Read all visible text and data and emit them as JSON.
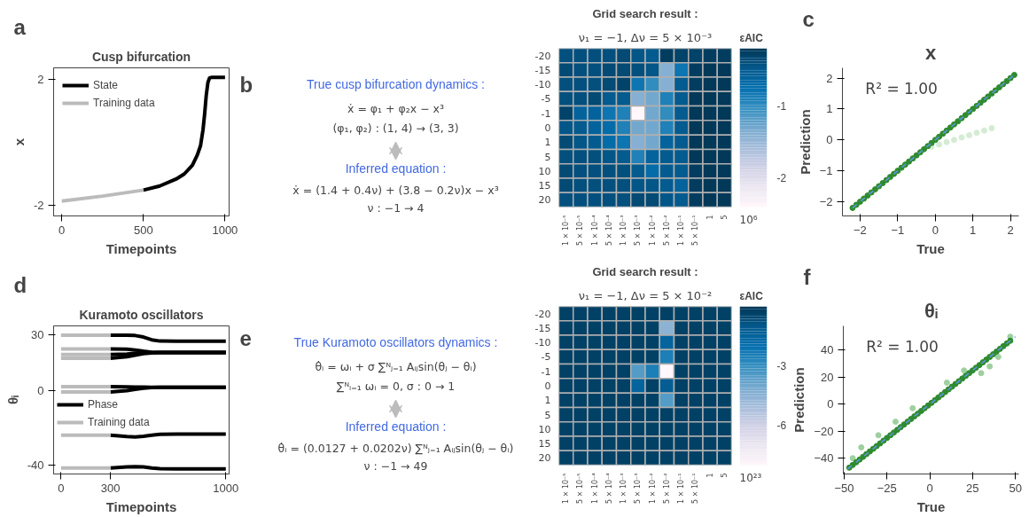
{
  "chart_data": [
    {
      "type": "line",
      "title": "Cusp bifurcation",
      "xlabel": "Timepoints",
      "ylabel": "x",
      "annotations": [
        "a"
      ],
      "xlim": [
        -50,
        1025
      ],
      "ylim": [
        -2.33,
        2.37
      ],
      "xticks": [
        0,
        500,
        1000
      ],
      "yticks": [
        2,
        -2
      ],
      "legend": "top left",
      "series": [
        {
          "name": "State",
          "color": "#000000",
          "x": [
            500,
            600,
            700,
            750,
            800,
            830,
            850,
            865,
            875,
            885,
            895,
            905,
            920,
            1000
          ],
          "values": [
            -1.51,
            -1.38,
            -1.16,
            -1.0,
            -0.72,
            -0.4,
            -0.1,
            0.4,
            0.9,
            1.5,
            1.9,
            2.05,
            2.07,
            2.07
          ]
        },
        {
          "name": "Training data",
          "color": "#bbbbbb",
          "x": [
            0,
            250,
            500
          ],
          "values": [
            -1.86,
            -1.7,
            -1.51
          ]
        }
      ]
    },
    {
      "type": "other",
      "title": "True cusp bifurcation dynamics :",
      "subtitle": "Inferred equation :",
      "annotations": [
        "b",
        "ẋ = φ₁ + φ₂x − x³",
        "(φ₁, φ₂) : (1, 4) → (3, 3)",
        "ẋ = (1.4 + 0.4ν) + (3.8 − 0.2ν)x − x³",
        "ν : −1 → 4"
      ]
    },
    {
      "type": "heatmap",
      "title": "Grid search result :",
      "subtitle": "ν₁ = −1, Δν = 5 × 10⁻³",
      "clabel": "εAIC",
      "annotations": [
        "10⁶"
      ],
      "clim": [
        -2.4,
        -0.2
      ],
      "cticks": [
        {
          "value": -1,
          "label": "-1"
        },
        {
          "value": -2,
          "label": "-2"
        }
      ],
      "categories": [
        "1 × 10⁻⁵",
        "5 × 10⁻⁵",
        "1 × 10⁻⁴",
        "5 × 10⁻⁴",
        "1 × 10⁻³",
        "5 × 10⁻³",
        "1 × 10⁻²",
        "5 × 10⁻²",
        "1 × 10⁻¹",
        "5 × 10⁻¹",
        "1",
        "5"
      ],
      "y_categories": [
        "-20",
        "-15",
        "-10",
        "-5",
        "-1",
        "0",
        "1",
        "5",
        "10",
        "15",
        "20"
      ],
      "cells": [
        [
          -0.4,
          -0.4,
          -0.4,
          -0.4,
          -0.35,
          -0.45,
          -0.5,
          -0.25,
          -0.3,
          -0.3,
          -0.25,
          -0.25
        ],
        [
          -0.35,
          -0.4,
          -0.4,
          -0.35,
          -0.35,
          -0.4,
          -0.45,
          -1.4,
          -0.8,
          -0.25,
          -0.2,
          -0.2
        ],
        [
          -0.4,
          -0.4,
          -0.4,
          -0.35,
          -0.3,
          -0.8,
          -1.0,
          -1.4,
          -0.5,
          -0.25,
          -0.2,
          -0.2
        ],
        [
          -0.4,
          -0.4,
          -0.35,
          -0.5,
          -0.5,
          -1.4,
          -1.3,
          -0.9,
          -0.5,
          -0.2,
          -0.2,
          -0.2
        ],
        [
          -0.3,
          -0.6,
          -0.6,
          -0.8,
          -0.9,
          -2.4,
          -1.3,
          -1.0,
          -0.5,
          -0.2,
          -0.2,
          -0.2
        ],
        [
          -0.45,
          -0.5,
          -0.6,
          -0.7,
          -0.9,
          -1.3,
          -1.3,
          -0.9,
          -0.5,
          -0.2,
          -0.2,
          -0.2
        ],
        [
          -0.35,
          -0.45,
          -0.5,
          -0.7,
          -0.8,
          -1.4,
          -1.3,
          -0.6,
          -0.5,
          -0.2,
          -0.2,
          -0.2
        ],
        [
          -0.4,
          -0.4,
          -0.4,
          -0.45,
          -0.5,
          -0.9,
          -0.6,
          -0.5,
          -0.5,
          -0.2,
          -0.2,
          -0.2
        ],
        [
          -0.35,
          -0.4,
          -0.4,
          -0.4,
          -0.4,
          -0.5,
          -0.7,
          -0.5,
          -0.5,
          -0.25,
          -0.2,
          -0.2
        ],
        [
          -0.35,
          -0.4,
          -0.4,
          -0.4,
          -0.4,
          -0.45,
          -0.45,
          -0.5,
          -0.6,
          -0.25,
          -0.2,
          -0.2
        ],
        [
          -0.4,
          -0.4,
          -0.4,
          -0.4,
          -0.4,
          -0.35,
          -0.35,
          -0.45,
          -0.5,
          -0.25,
          -0.2,
          -0.2
        ]
      ]
    },
    {
      "type": "scatter",
      "title": "x",
      "xlabel": "True",
      "ylabel": "Prediction",
      "annotations": [
        "c",
        "R² = 1.00"
      ],
      "xlim": [
        -2.47,
        2.22
      ],
      "ylim": [
        -2.46,
        2.33
      ],
      "xticks": [
        {
          "value": -2,
          "label": "−2"
        },
        {
          "value": -1,
          "label": "−1"
        },
        0,
        1,
        2
      ],
      "yticks": [
        {
          "value": -2,
          "label": "−2"
        },
        {
          "value": -1,
          "label": "−1"
        },
        0,
        1,
        2
      ],
      "series": [
        {
          "color": "#d4ecd4",
          "marker": "circle",
          "x": [
            -0.1,
            0.1,
            0.3,
            0.5,
            0.7,
            0.9,
            1.1,
            1.3,
            1.5
          ],
          "values": [
            -0.22,
            -0.15,
            -0.07,
            0.0,
            0.08,
            0.15,
            0.23,
            0.3,
            0.38
          ]
        },
        {
          "color": "#2e8b2e",
          "marker": "circle",
          "x": [
            -2.2,
            -2.1,
            -2.0,
            -1.9,
            -1.8,
            -1.7,
            -1.6,
            -1.5,
            -1.4,
            -1.3,
            -1.2,
            -1.1,
            -1.0,
            -0.9,
            -0.8,
            -0.7,
            -0.6,
            -0.5,
            -0.4,
            -0.3,
            -0.2,
            -0.1,
            0,
            0.1,
            0.2,
            0.3,
            0.4,
            0.5,
            0.6,
            0.7,
            0.8,
            0.9,
            1.0,
            1.1,
            1.2,
            1.3,
            1.4,
            1.5,
            1.6,
            1.7,
            1.8,
            1.9,
            2.0,
            2.1
          ],
          "values": [
            -2.2,
            -2.1,
            -2.0,
            -1.9,
            -1.8,
            -1.7,
            -1.6,
            -1.5,
            -1.4,
            -1.3,
            -1.2,
            -1.1,
            -1.0,
            -0.9,
            -0.8,
            -0.7,
            -0.6,
            -0.5,
            -0.4,
            -0.3,
            -0.2,
            -0.1,
            0,
            0.1,
            0.2,
            0.3,
            0.4,
            0.5,
            0.6,
            0.7,
            0.8,
            0.9,
            1.0,
            1.1,
            1.2,
            1.3,
            1.4,
            1.5,
            1.6,
            1.7,
            1.8,
            1.9,
            2.0,
            2.1
          ]
        },
        {
          "type": "line",
          "color": "#6495ed",
          "line_style": "dashed",
          "x": [
            -2.2,
            2.1
          ],
          "values": [
            -2.2,
            2.1
          ]
        }
      ]
    },
    {
      "type": "line",
      "title": "Kuramoto oscillators",
      "xlabel": "Timepoints",
      "ylabel": "θᵢ",
      "annotations": [
        "d"
      ],
      "xlim": [
        -45,
        1020
      ],
      "ylim": [
        -45,
        35
      ],
      "xticks": [
        0,
        300,
        1000
      ],
      "yticks": [
        30,
        0,
        -40
      ],
      "legend": "center left",
      "series": [
        {
          "name": "Phase",
          "color": "#000000",
          "x": [
            300,
            400,
            450,
            500,
            550,
            600,
            700,
            1000
          ],
          "values": [
            30,
            30,
            29.8,
            29,
            27.5,
            26.8,
            26.7,
            26.7
          ]
        },
        {
          "name": "Training data",
          "color": "#bbbbbb",
          "x": [
            0,
            300
          ],
          "values": [
            30,
            30
          ]
        },
        {
          "color": "#000000",
          "x": [
            300,
            400,
            450,
            500,
            550,
            600,
            700,
            1000
          ],
          "values": [
            22.5,
            22.4,
            22,
            21.3,
            20.8,
            20.6,
            20.6,
            20.6
          ]
        },
        {
          "color": "#bbbbbb",
          "x": [
            0,
            300
          ],
          "values": [
            22.5,
            22.5
          ]
        },
        {
          "color": "#000000",
          "x": [
            300,
            400,
            450,
            500,
            550,
            600,
            700,
            1000
          ],
          "values": [
            19.5,
            19.8,
            20.2,
            20.5,
            20.6,
            20.6,
            20.6,
            20.6
          ]
        },
        {
          "color": "#bbbbbb",
          "x": [
            0,
            300
          ],
          "values": [
            19.5,
            19.5
          ]
        },
        {
          "color": "#000000",
          "x": [
            300,
            400,
            450,
            500,
            550,
            600,
            700,
            1000
          ],
          "values": [
            17.5,
            18.3,
            19.2,
            20,
            20.4,
            20.6,
            20.6,
            20.6
          ]
        },
        {
          "color": "#bbbbbb",
          "x": [
            0,
            300
          ],
          "values": [
            17.5,
            17.5
          ]
        },
        {
          "color": "#000000",
          "x": [
            300,
            400,
            450,
            500,
            550,
            600,
            700,
            1000
          ],
          "values": [
            2.2,
            2.1,
            2,
            1.9,
            1.8,
            1.8,
            1.8,
            1.8
          ]
        },
        {
          "color": "#bbbbbb",
          "x": [
            0,
            300
          ],
          "values": [
            2.2,
            2.2
          ]
        },
        {
          "color": "#000000",
          "x": [
            300,
            400,
            450,
            500,
            550,
            600,
            700,
            1000
          ],
          "values": [
            -0.7,
            0,
            0.7,
            1.3,
            1.7,
            1.8,
            1.8,
            1.8
          ]
        },
        {
          "color": "#bbbbbb",
          "x": [
            0,
            300
          ],
          "values": [
            -0.7,
            -0.7
          ]
        },
        {
          "color": "#000000",
          "x": [
            300,
            400,
            450,
            500,
            550,
            600,
            700,
            1000
          ],
          "values": [
            -24,
            -24.8,
            -25,
            -24.6,
            -24,
            -23.6,
            -23.4,
            -23.4
          ]
        },
        {
          "color": "#bbbbbb",
          "x": [
            0,
            300
          ],
          "values": [
            -24,
            -24
          ]
        },
        {
          "color": "#000000",
          "x": [
            300,
            400,
            450,
            500,
            550,
            600,
            700,
            1000
          ],
          "values": [
            -41.8,
            -41.2,
            -41,
            -41.2,
            -41.8,
            -42.1,
            -42.2,
            -42.2
          ]
        },
        {
          "color": "#bbbbbb",
          "x": [
            0,
            300
          ],
          "values": [
            -41.8,
            -41.8
          ]
        }
      ]
    },
    {
      "type": "other",
      "title": "True Kuramoto oscillators dynamics :",
      "subtitle": "Inferred equation :",
      "annotations": [
        "e",
        "θ̇ᵢ = ωᵢ + σ ∑ᴺⱼ₌₁ Aᵢⱼsin(θⱼ − θᵢ)",
        "∑ᴺᵢ₌₁ ωᵢ = 0, σ : 0 → 1",
        "θ̇ᵢ = (0.0127 + 0.0202ν) ∑ᴺⱼ₌₁ Aᵢⱼsin(θⱼ − θᵢ)",
        "ν : −1 → 49"
      ]
    },
    {
      "type": "heatmap",
      "title": "Grid search result :",
      "subtitle": "ν₁ = −1, Δν = 5 × 10⁻²",
      "clabel": "εAIC",
      "annotations": [
        "10²³"
      ],
      "clim": [
        -8,
        0
      ],
      "cticks": [
        {
          "value": -3,
          "label": "-3"
        },
        {
          "value": -6,
          "label": "-6"
        }
      ],
      "categories": [
        "1 × 10⁻⁵",
        "5 × 10⁻⁵",
        "1 × 10⁻⁴",
        "5 × 10⁻⁴",
        "1 × 10⁻³",
        "5 × 10⁻³",
        "1 × 10⁻²",
        "5 × 10⁻²",
        "1 × 10⁻¹",
        "5 × 10⁻¹",
        "1",
        "5"
      ],
      "y_categories": [
        "-20",
        "-15",
        "-10",
        "-5",
        "-1",
        "0",
        "1",
        "5",
        "10",
        "15",
        "20"
      ],
      "cells": [
        [
          -0.3,
          -0.3,
          -0.3,
          -0.3,
          -0.3,
          -0.3,
          -0.3,
          -0.3,
          -0.3,
          -0.3,
          -0.3,
          -0.3
        ],
        [
          -0.3,
          -0.3,
          -0.3,
          -0.3,
          -0.3,
          -0.3,
          -0.3,
          -4.5,
          -0.3,
          -0.3,
          -0.3,
          -0.3
        ],
        [
          -0.3,
          -0.3,
          -0.3,
          -0.3,
          -0.3,
          -0.3,
          -0.3,
          -1.5,
          -0.3,
          -0.3,
          -0.3,
          -0.3
        ],
        [
          -0.3,
          -0.3,
          -0.3,
          -0.3,
          -0.3,
          -0.3,
          -0.3,
          -2.5,
          -0.3,
          -0.3,
          -0.3,
          -0.3
        ],
        [
          -0.3,
          -0.3,
          -0.3,
          -0.3,
          -0.3,
          -3.5,
          -2.5,
          -8,
          -0.3,
          -0.3,
          -0.3,
          -0.3
        ],
        [
          -0.3,
          -0.3,
          -0.3,
          -0.3,
          -0.3,
          -1.5,
          -0.3,
          -1.2,
          -0.3,
          -0.3,
          -0.3,
          -0.3
        ],
        [
          -0.3,
          -0.3,
          -0.3,
          -0.3,
          -0.3,
          -0.3,
          -0.3,
          -3.5,
          -0.3,
          -0.3,
          -0.3,
          -0.3
        ],
        [
          -0.3,
          -0.3,
          -0.3,
          -0.3,
          -0.3,
          -0.3,
          -0.3,
          -0.3,
          -0.3,
          -0.3,
          -0.3,
          -0.3
        ],
        [
          -0.3,
          -0.3,
          -0.3,
          -0.3,
          -0.3,
          -0.3,
          -0.3,
          -0.3,
          -0.3,
          -0.3,
          -0.3,
          -0.3
        ],
        [
          -0.3,
          -0.3,
          -0.3,
          -0.3,
          -0.3,
          -0.3,
          -0.3,
          -0.3,
          -0.3,
          -0.3,
          -0.3,
          -0.3
        ],
        [
          -0.3,
          -0.3,
          -0.3,
          -0.3,
          -0.3,
          -0.3,
          -0.3,
          -0.3,
          -0.3,
          -0.3,
          -0.3,
          -0.3
        ]
      ]
    },
    {
      "type": "scatter",
      "title": "θᵢ",
      "xlabel": "True",
      "ylabel": "Prediction",
      "annotations": [
        "f",
        "R² = 1.00"
      ],
      "xlim": [
        -50.5,
        52
      ],
      "ylim": [
        -51.7,
        58
      ],
      "xticks": [
        {
          "value": -50,
          "label": "−50"
        },
        {
          "value": -25,
          "label": "−25"
        },
        0,
        25,
        50
      ],
      "yticks": [
        {
          "value": -40,
          "label": "−40"
        },
        {
          "value": -20,
          "label": "−20"
        },
        0,
        20,
        40
      ],
      "series": [
        {
          "color": "#9fd09f",
          "marker": "circle",
          "x": [
            -45,
            -40,
            -30,
            -20,
            -10,
            10,
            20,
            30,
            35,
            40,
            47
          ],
          "values": [
            -40,
            -32,
            -23,
            -13,
            -3,
            16,
            25,
            23,
            28,
            35,
            50
          ]
        },
        {
          "color": "#2e8b2e",
          "marker": "circle",
          "x": [
            -47,
            -45,
            -43,
            -41,
            -39,
            -37,
            -35,
            -33,
            -31,
            -29,
            -27,
            -25,
            -23,
            -21,
            -19,
            -17,
            -15,
            -13,
            -11,
            -9,
            -7,
            -5,
            -3,
            -1,
            1,
            3,
            5,
            7,
            9,
            11,
            13,
            15,
            17,
            19,
            21,
            23,
            25,
            27,
            29,
            31,
            33,
            35,
            37,
            39,
            41,
            43,
            45,
            47
          ],
          "values": [
            -47,
            -45,
            -43,
            -41,
            -39,
            -37,
            -35,
            -33,
            -31,
            -29,
            -27,
            -25,
            -23,
            -21,
            -19,
            -17,
            -15,
            -13,
            -11,
            -9,
            -7,
            -5,
            -3,
            -1,
            1,
            3,
            5,
            7,
            9,
            11,
            13,
            15,
            17,
            19,
            21,
            23,
            25,
            27,
            29,
            31,
            33,
            35,
            37,
            39,
            41,
            43,
            45,
            47
          ]
        },
        {
          "type": "line",
          "color": "#6495ed",
          "line_style": "dashed",
          "x": [
            -48,
            50
          ],
          "values": [
            -48,
            50
          ]
        }
      ]
    }
  ]
}
